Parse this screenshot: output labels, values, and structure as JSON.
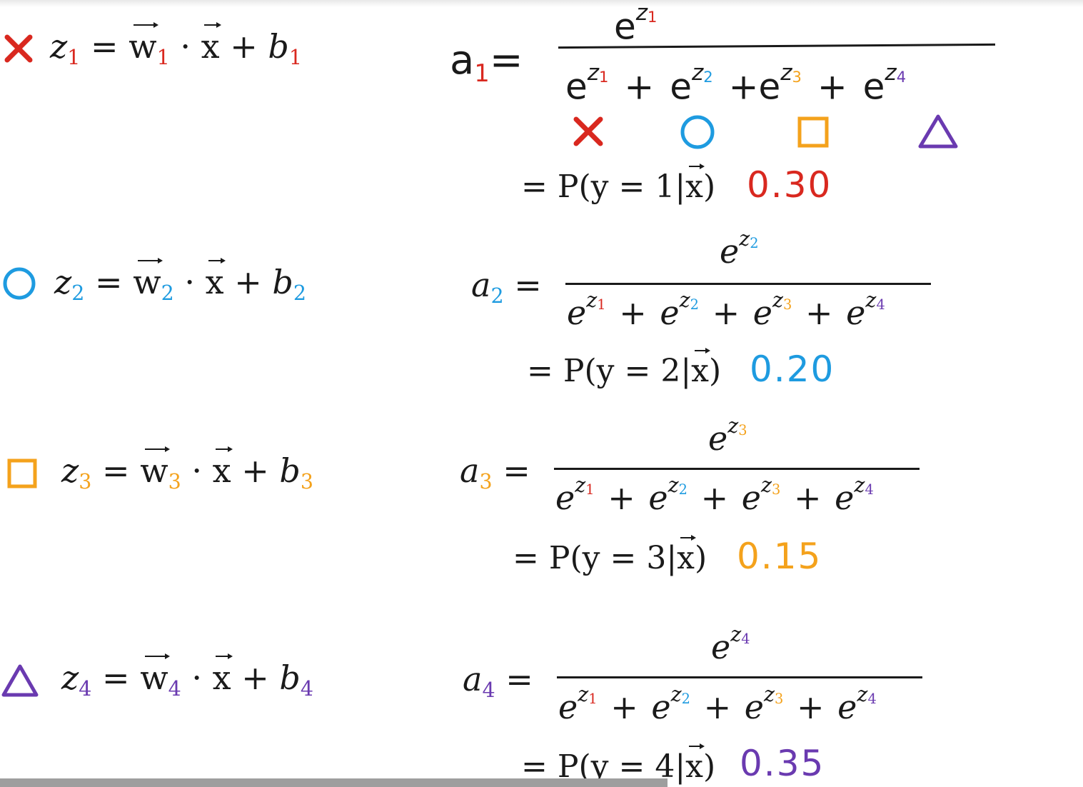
{
  "colors": {
    "class1": "#d9281f",
    "class2": "#1e9be0",
    "class3": "#f4a21c",
    "class4": "#6a3ab0",
    "ink": "#1a1a1a"
  },
  "symbols": {
    "class1": "x-mark-icon",
    "class2": "circle-icon",
    "class3": "square-icon",
    "class4": "triangle-icon"
  },
  "rows": [
    {
      "z": "z",
      "idx": "1",
      "eq": "=",
      "w": "w",
      "dot": "·",
      "x": "x",
      "plus": "+",
      "b": "b",
      "a": "a",
      "prob_lhs": "= P(y = 1|",
      "prob_x": "x",
      "prob_rhs": ")",
      "prob_value": "0.30"
    },
    {
      "z": "z",
      "idx": "2",
      "eq": "=",
      "w": "w",
      "dot": "·",
      "x": "x",
      "plus": "+",
      "b": "b",
      "a": "a",
      "prob_lhs": "= P(y = 2|",
      "prob_x": "x",
      "prob_rhs": ")",
      "prob_value": "0.20"
    },
    {
      "z": "z",
      "idx": "3",
      "eq": "=",
      "w": "w",
      "dot": "·",
      "x": "x",
      "plus": "+",
      "b": "b",
      "a": "a",
      "prob_lhs": "= P(y = 3|",
      "prob_x": "x",
      "prob_rhs": ")",
      "prob_value": "0.15"
    },
    {
      "z": "z",
      "idx": "4",
      "eq": "=",
      "w": "w",
      "dot": "·",
      "x": "x",
      "plus": "+",
      "b": "b",
      "a": "a",
      "prob_lhs": "= P(y = 4|",
      "prob_x": "x",
      "prob_rhs": ")",
      "prob_value": "0.35"
    }
  ],
  "exp": {
    "e": "e",
    "z": "z",
    "plus": "+",
    "eq": "="
  }
}
